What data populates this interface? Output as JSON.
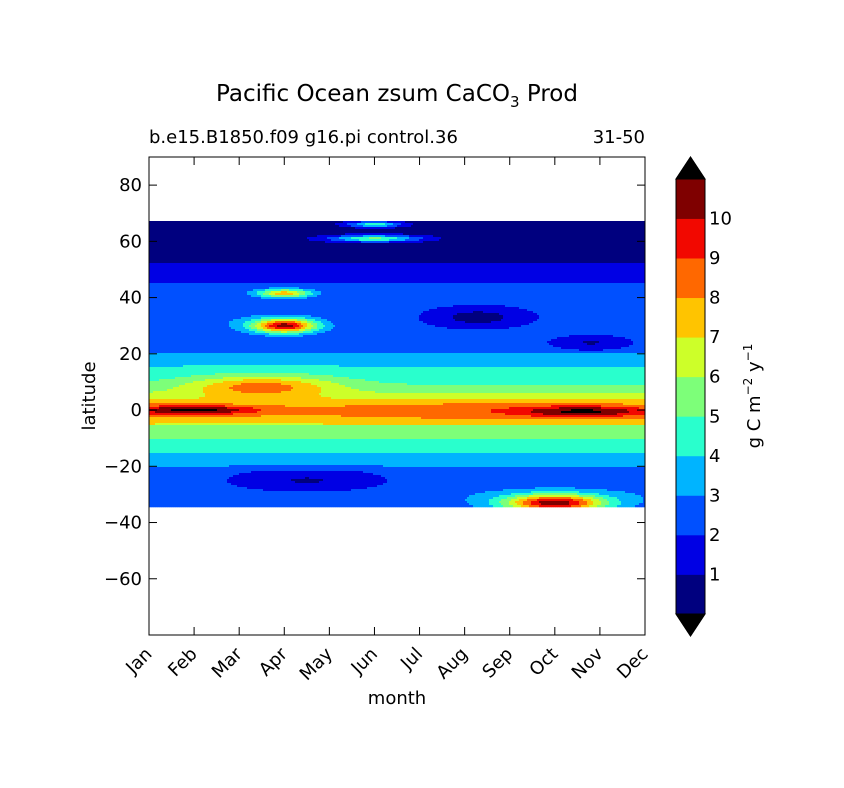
{
  "chart_data": {
    "type": "heatmap",
    "title_main": "Pacific Ocean zsum CaCO",
    "title_subscript": "3",
    "title_suffix": "Prod",
    "subtitle_left": "b.e15.B1850.f09 g16.pi control.36",
    "subtitle_right": "31-50",
    "xlabel": "month",
    "ylabel": "latitude",
    "x_categories": [
      "Jan",
      "Feb",
      "Mar",
      "Apr",
      "May",
      "Jun",
      "Jul",
      "Aug",
      "Sep",
      "Oct",
      "Nov",
      "Dec"
    ],
    "xlim": [
      0,
      11
    ],
    "ylim": [
      -80,
      90
    ],
    "y_ticks": [
      -60,
      -40,
      -20,
      0,
      20,
      40,
      60,
      80
    ],
    "y_tick_labels": [
      "−60",
      "−40",
      "−20",
      "0",
      "20",
      "40",
      "60",
      "80"
    ],
    "data_lat_range": [
      -34,
      67
    ],
    "colorbar": {
      "label_parts": [
        "g C m",
        "−2",
        " y",
        "−1"
      ],
      "levels": [
        0,
        1,
        2,
        3,
        4,
        5,
        6,
        7,
        8,
        9,
        10,
        11
      ],
      "tick_labels": [
        "1",
        "2",
        "3",
        "4",
        "5",
        "6",
        "7",
        "8",
        "9",
        "10"
      ],
      "colors": [
        "#00007f",
        "#0000e4",
        "#0050ff",
        "#00b4ff",
        "#29ffcd",
        "#7dff79",
        "#cdff29",
        "#ffc400",
        "#ff6800",
        "#f20800",
        "#7f0000"
      ],
      "under_color": "#000000",
      "over_color": "#000000"
    },
    "field_features": [
      {
        "lat": 0,
        "month": 1.0,
        "value": 11.5,
        "ls": 1.6,
        "lm": 1.3
      },
      {
        "lat": -0.5,
        "month": 9.6,
        "value": 11.3,
        "ls": 1.8,
        "lm": 1.4
      },
      {
        "lat": 8,
        "month": 2.5,
        "value": 8.6,
        "ls": 4,
        "lm": 1.6
      },
      {
        "lat": 30,
        "month": 3.0,
        "value": 10.5,
        "ls": 2.5,
        "lm": 0.7
      },
      {
        "lat": 41.5,
        "month": 3.0,
        "value": 7.6,
        "ls": 1.5,
        "lm": 0.6
      },
      {
        "lat": -33,
        "month": 9.0,
        "value": 10.8,
        "ls": 3,
        "lm": 1.1
      },
      {
        "lat": 61,
        "month": 5.0,
        "value": 5.2,
        "ls": 1.2,
        "lm": 1.0
      },
      {
        "lat": 66,
        "month": 5.0,
        "value": 4.6,
        "ls": 1,
        "lm": 0.6
      },
      {
        "lat": 33,
        "month": 7.3,
        "value": 0.4,
        "ls": 3,
        "lm": 0.9
      },
      {
        "lat": 24,
        "month": 9.8,
        "value": 0.9,
        "ls": 2,
        "lm": 0.7
      },
      {
        "lat": -25,
        "month": 3.5,
        "value": 0.9,
        "ls": 3,
        "lm": 1.3
      }
    ]
  }
}
